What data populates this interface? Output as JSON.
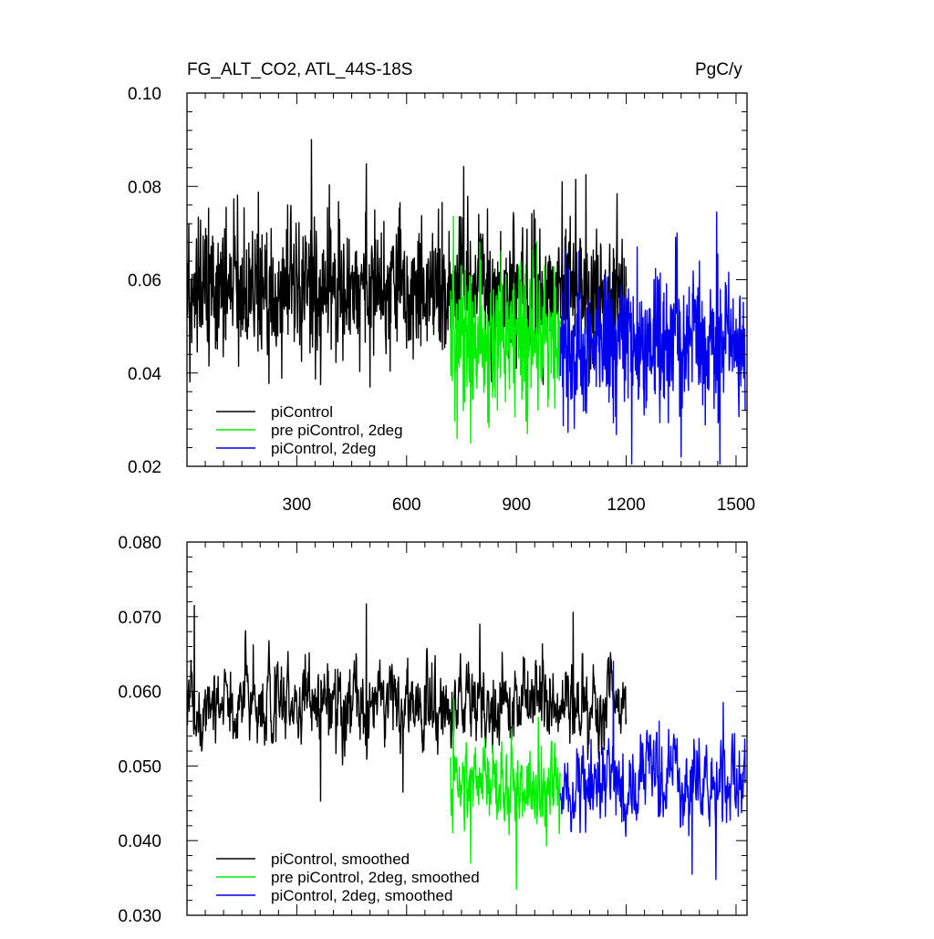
{
  "figure": {
    "left_title": "FG_ALT_CO2, ATL_44S-18S",
    "right_title": "PgC/y"
  },
  "colors": {
    "piControl": "#000000",
    "pre_piControl_2deg": "#00ee00",
    "piControl_2deg": "#0000ee"
  },
  "chart_data": [
    {
      "type": "line",
      "title": "FG_ALT_CO2, ATL_44S-18S",
      "units": "PgC/y",
      "xlim": [
        0,
        1530
      ],
      "ylim": [
        0.02,
        0.1
      ],
      "x_ticks": [
        300,
        600,
        900,
        1200,
        1500
      ],
      "x_ticklabels": [
        "300",
        "600",
        "900",
        "1200",
        "1500"
      ],
      "y_ticks": [
        0.02,
        0.04,
        0.06,
        0.08,
        0.1
      ],
      "y_ticklabels": [
        "0.02",
        "0.04",
        "0.06",
        "0.08",
        "0.10"
      ],
      "legend_position": "bottom-left",
      "series": [
        {
          "name": "piControl",
          "color": "#000000",
          "x_range": [
            1,
            1200
          ],
          "mean": 0.0575,
          "std": 0.0085,
          "min": 0.037,
          "max": 0.09,
          "peaks": [
            [
              340,
              0.0903
            ],
            [
              490,
              0.0848
            ],
            [
              1025,
              0.0835
            ],
            [
              1090,
              0.0825
            ],
            [
              1062,
              0.0815
            ],
            [
              1025,
              0.081
            ],
            [
              60,
              0.0795
            ]
          ],
          "troughs": [
            [
              365,
              0.0375
            ],
            [
              500,
              0.0365
            ],
            [
              60,
              0.0415
            ]
          ]
        },
        {
          "name": "pre piControl, 2deg",
          "color": "#00ee00",
          "x_range": [
            720,
            1020
          ],
          "mean": 0.048,
          "std": 0.009,
          "min": 0.025,
          "max": 0.0735,
          "peaks": [
            [
              728,
              0.0735
            ],
            [
              945,
              0.0665
            ],
            [
              800,
              0.068
            ]
          ],
          "troughs": [
            [
              738,
              0.026
            ],
            [
              775,
              0.025
            ],
            [
              930,
              0.027
            ]
          ]
        },
        {
          "name": "piControl, 2deg",
          "color": "#0000ee",
          "x_range": [
            1020,
            1525
          ],
          "mean": 0.046,
          "std": 0.0085,
          "min": 0.0205,
          "max": 0.0745,
          "peaks": [
            [
              1447,
              0.0745
            ],
            [
              1230,
              0.067
            ],
            [
              1400,
              0.064
            ]
          ],
          "troughs": [
            [
              1215,
              0.0205
            ],
            [
              1350,
              0.022
            ],
            [
              1452,
              0.03
            ]
          ]
        }
      ]
    },
    {
      "type": "line",
      "title": "",
      "xlim": [
        0,
        1530
      ],
      "ylim": [
        0.03,
        0.08
      ],
      "x_ticks": [
        300,
        600,
        900,
        1200,
        1500
      ],
      "x_ticklabels": [],
      "y_ticks": [
        0.03,
        0.04,
        0.05,
        0.06,
        0.07,
        0.08
      ],
      "y_ticklabels": [
        "0.030",
        "0.040",
        "0.050",
        "0.060",
        "0.070",
        "0.080"
      ],
      "legend_position": "bottom-left",
      "series": [
        {
          "name": "piControl, smoothed",
          "color": "#000000",
          "x_range": [
            1,
            1200
          ],
          "mean": 0.0585,
          "std": 0.0045,
          "min": 0.0453,
          "max": 0.0717,
          "peaks": [
            [
              20,
              0.0715
            ],
            [
              490,
              0.0717
            ],
            [
              1055,
              0.0706
            ],
            [
              800,
              0.069
            ]
          ],
          "troughs": [
            [
              365,
              0.0453
            ],
            [
              590,
              0.0465
            ],
            [
              40,
              0.052
            ]
          ]
        },
        {
          "name": "pre piControl, 2deg, smoothed",
          "color": "#00ee00",
          "x_range": [
            720,
            1020
          ],
          "mean": 0.048,
          "std": 0.0045,
          "min": 0.0335,
          "max": 0.059,
          "peaks": [
            [
              728,
              0.059
            ],
            [
              960,
              0.0565
            ]
          ],
          "troughs": [
            [
              900,
              0.0335
            ],
            [
              775,
              0.037
            ]
          ]
        },
        {
          "name": "piControl, 2deg, smoothed",
          "color": "#0000ee",
          "x_range": [
            1020,
            1525
          ],
          "mean": 0.0475,
          "std": 0.0045,
          "min": 0.0348,
          "max": 0.064,
          "peaks": [
            [
              1165,
              0.064
            ],
            [
              1465,
              0.0585
            ],
            [
              1290,
              0.056
            ]
          ],
          "troughs": [
            [
              1445,
              0.0348
            ],
            [
              1380,
              0.0355
            ]
          ]
        }
      ]
    }
  ]
}
